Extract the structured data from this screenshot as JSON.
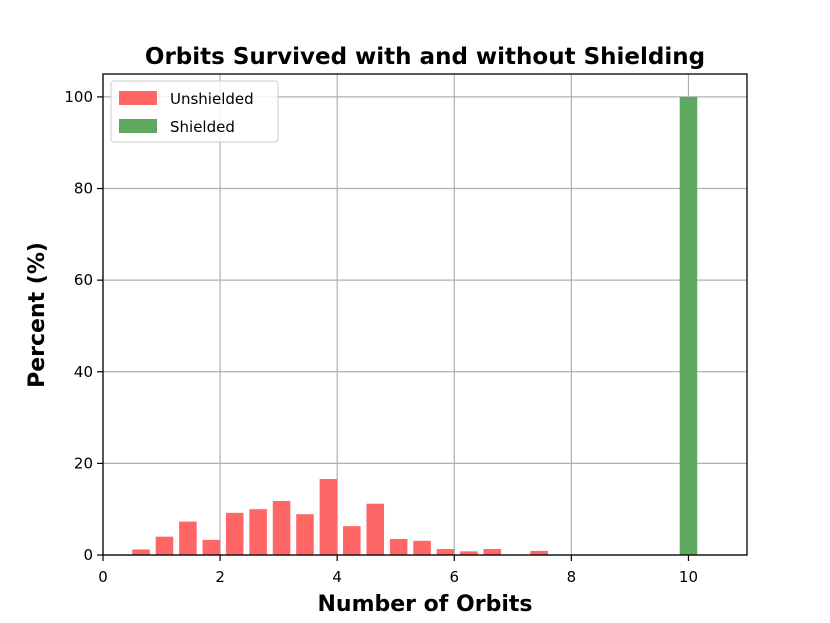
{
  "chart_data": {
    "type": "bar",
    "title": "Orbits Survived with and without Shielding",
    "xlabel": "Number of Orbits",
    "ylabel": "Percent (%)",
    "xlim": [
      0,
      11
    ],
    "ylim": [
      0,
      105
    ],
    "xticks": [
      0,
      2,
      4,
      6,
      8,
      10
    ],
    "yticks": [
      0,
      20,
      40,
      60,
      80,
      100
    ],
    "grid": true,
    "legend_position": "top-left",
    "bin_width": 0.3,
    "series": [
      {
        "name": "Unshielded",
        "color": "#ff6666",
        "bins": [
          {
            "x": 0.5,
            "value": 1.2
          },
          {
            "x": 0.9,
            "value": 4.0
          },
          {
            "x": 1.3,
            "value": 7.3
          },
          {
            "x": 1.7,
            "value": 3.3
          },
          {
            "x": 2.1,
            "value": 9.2
          },
          {
            "x": 2.5,
            "value": 10.0
          },
          {
            "x": 2.9,
            "value": 11.8
          },
          {
            "x": 3.3,
            "value": 8.9
          },
          {
            "x": 3.7,
            "value": 16.6
          },
          {
            "x": 4.1,
            "value": 6.3
          },
          {
            "x": 4.5,
            "value": 11.2
          },
          {
            "x": 4.9,
            "value": 3.5
          },
          {
            "x": 5.3,
            "value": 3.1
          },
          {
            "x": 5.7,
            "value": 1.3
          },
          {
            "x": 6.1,
            "value": 0.8
          },
          {
            "x": 6.5,
            "value": 1.3
          },
          {
            "x": 6.9,
            "value": 0.1
          },
          {
            "x": 7.3,
            "value": 0.9
          },
          {
            "x": 7.7,
            "value": 0.1
          },
          {
            "x": 8.1,
            "value": 0.1
          },
          {
            "x": 8.5,
            "value": 0.1
          }
        ]
      },
      {
        "name": "Shielded",
        "color": "#5fa85f",
        "bins": [
          {
            "x": 9.85,
            "value": 100
          }
        ]
      }
    ]
  }
}
